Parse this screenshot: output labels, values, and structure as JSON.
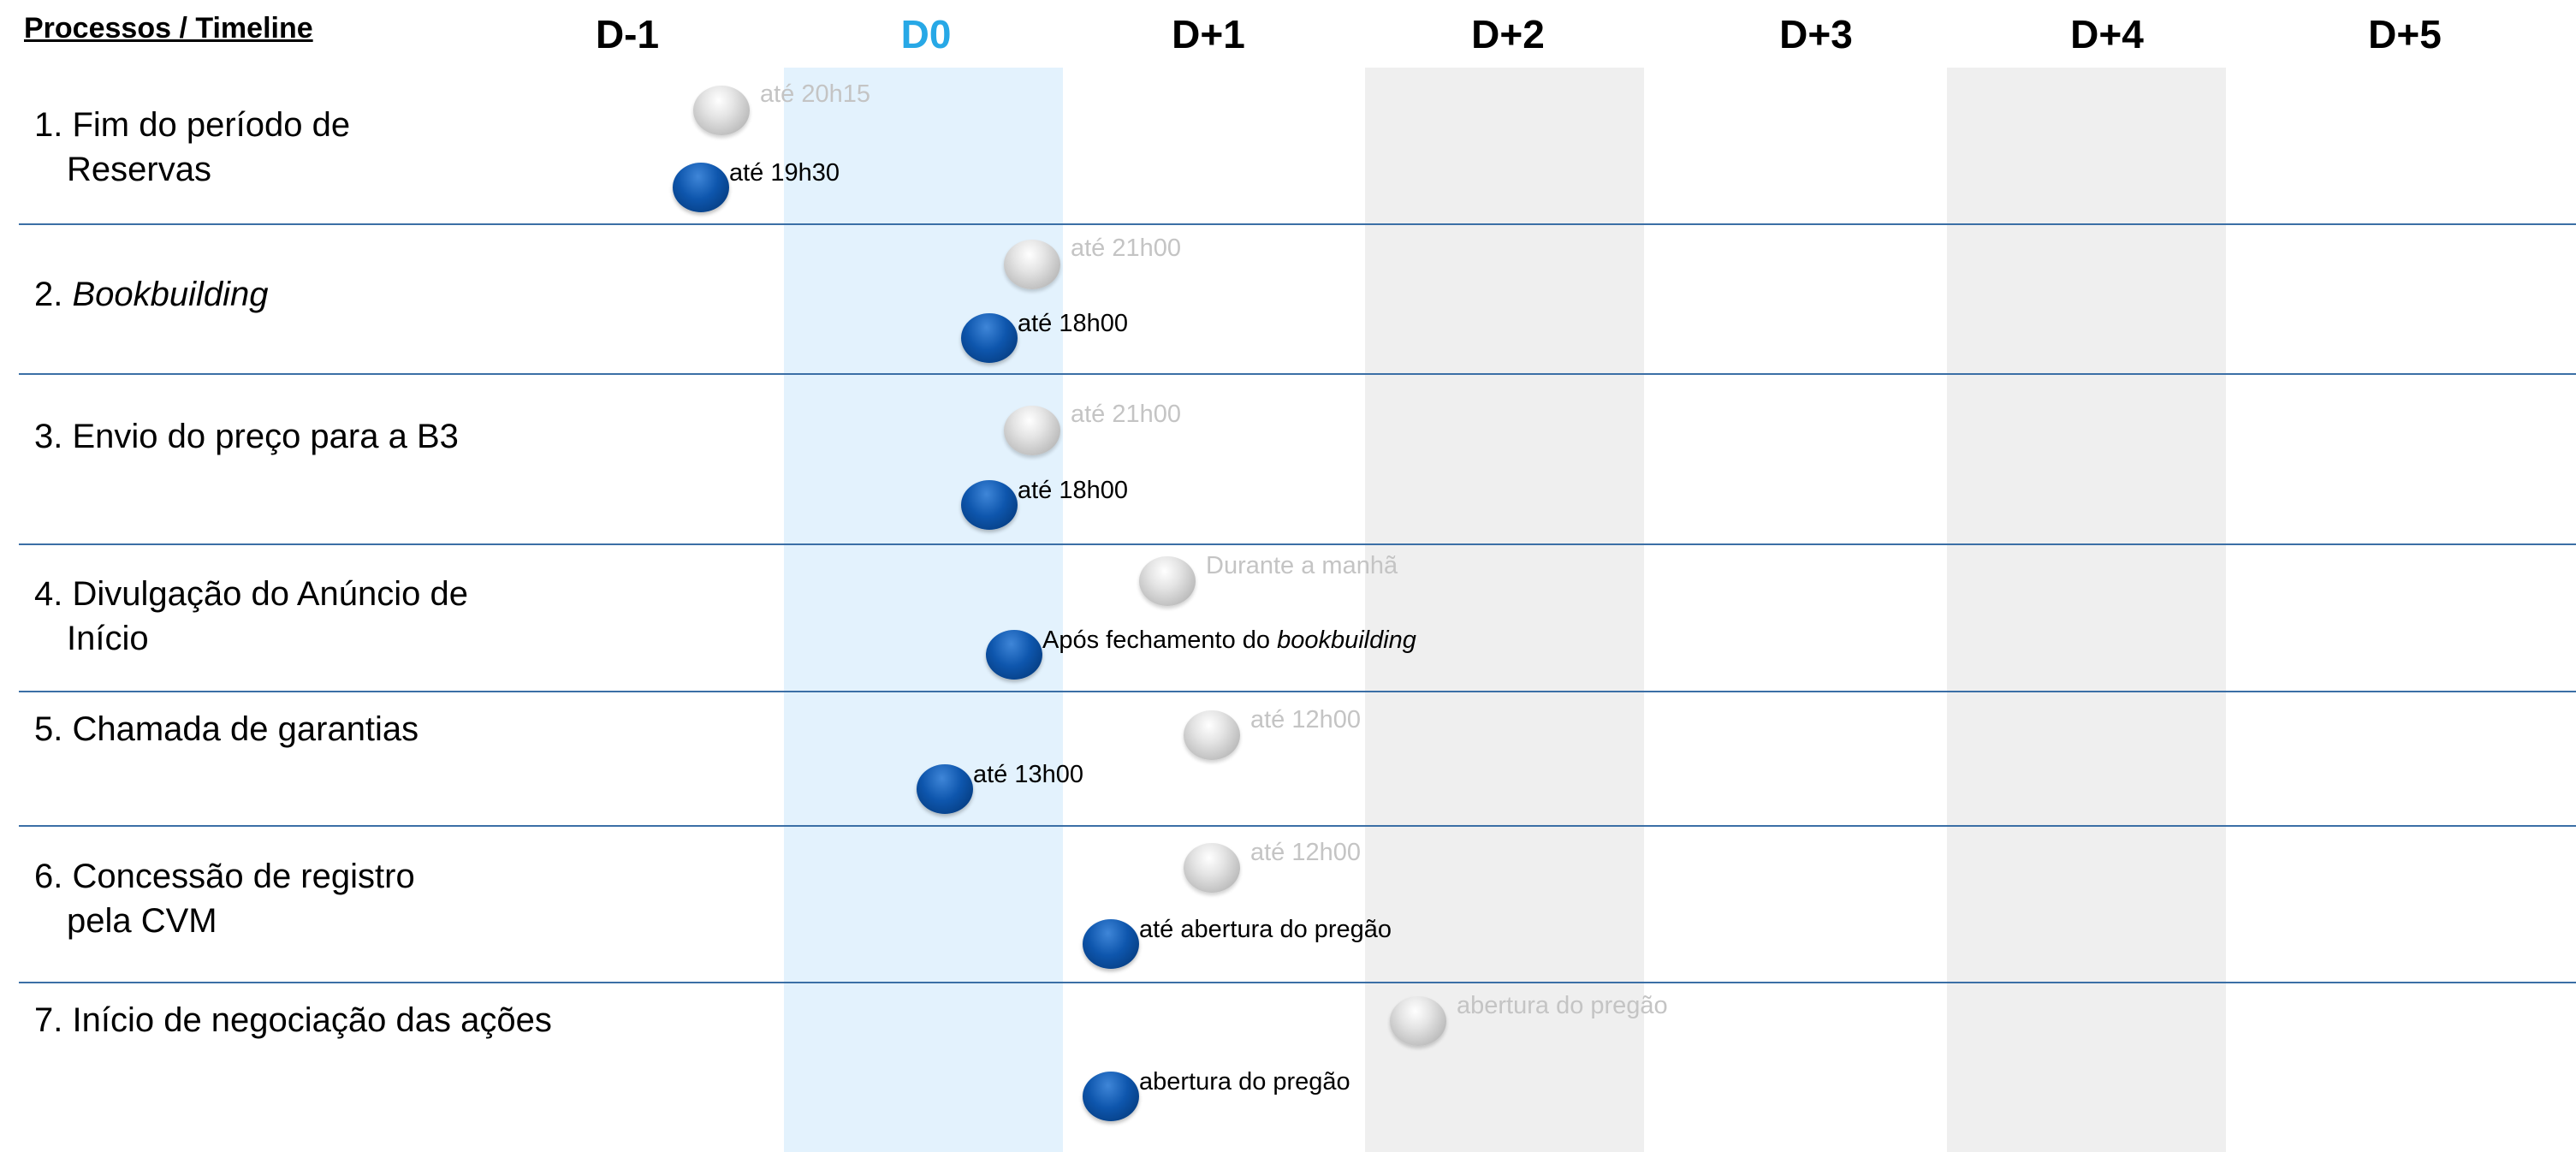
{
  "header": {
    "title": "Processos / Timeline",
    "columns": [
      "D-1",
      "D0",
      "D+1",
      "D+2",
      "D+3",
      "D+4",
      "D+5"
    ]
  },
  "colors": {
    "today_header": "#27a8e6",
    "today_band": "#e3f2fd",
    "alt_band": "#efefef",
    "separator": "#3b6fa6",
    "grey_marker": "#bdbdbd",
    "blue_marker": "#0e56ad"
  },
  "processes": [
    {
      "label_line1": "1. Fim do período de",
      "label_line2": "Reservas",
      "grey_text": "até 20h15",
      "blue_text": "até 19h30"
    },
    {
      "label_prefix": "2. ",
      "label_italic": "Bookbuilding",
      "grey_text": "até 21h00",
      "blue_text": "até 18h00"
    },
    {
      "label_line1": "3. Envio do preço para a B3",
      "grey_text": "até 21h00",
      "blue_text": "até 18h00"
    },
    {
      "label_line1": "4. Divulgação do Anúncio de",
      "label_line2": "Início",
      "grey_text": "Durante a manhã",
      "blue_text": "Após fechamento do",
      "blue_text_italic": "bookbuilding"
    },
    {
      "label_line1": "5. Chamada de garantias",
      "grey_text": "até 12h00",
      "blue_text": "até 13h00"
    },
    {
      "label_line1": "6. Concessão de registro",
      "label_line2": "pela CVM",
      "grey_text": "até 12h00",
      "blue_text": "até abertura do pregão"
    },
    {
      "label_line1": "7. Início de negociação das ações",
      "grey_text": "abertura do pregão",
      "blue_text": "abertura do pregão"
    }
  ]
}
